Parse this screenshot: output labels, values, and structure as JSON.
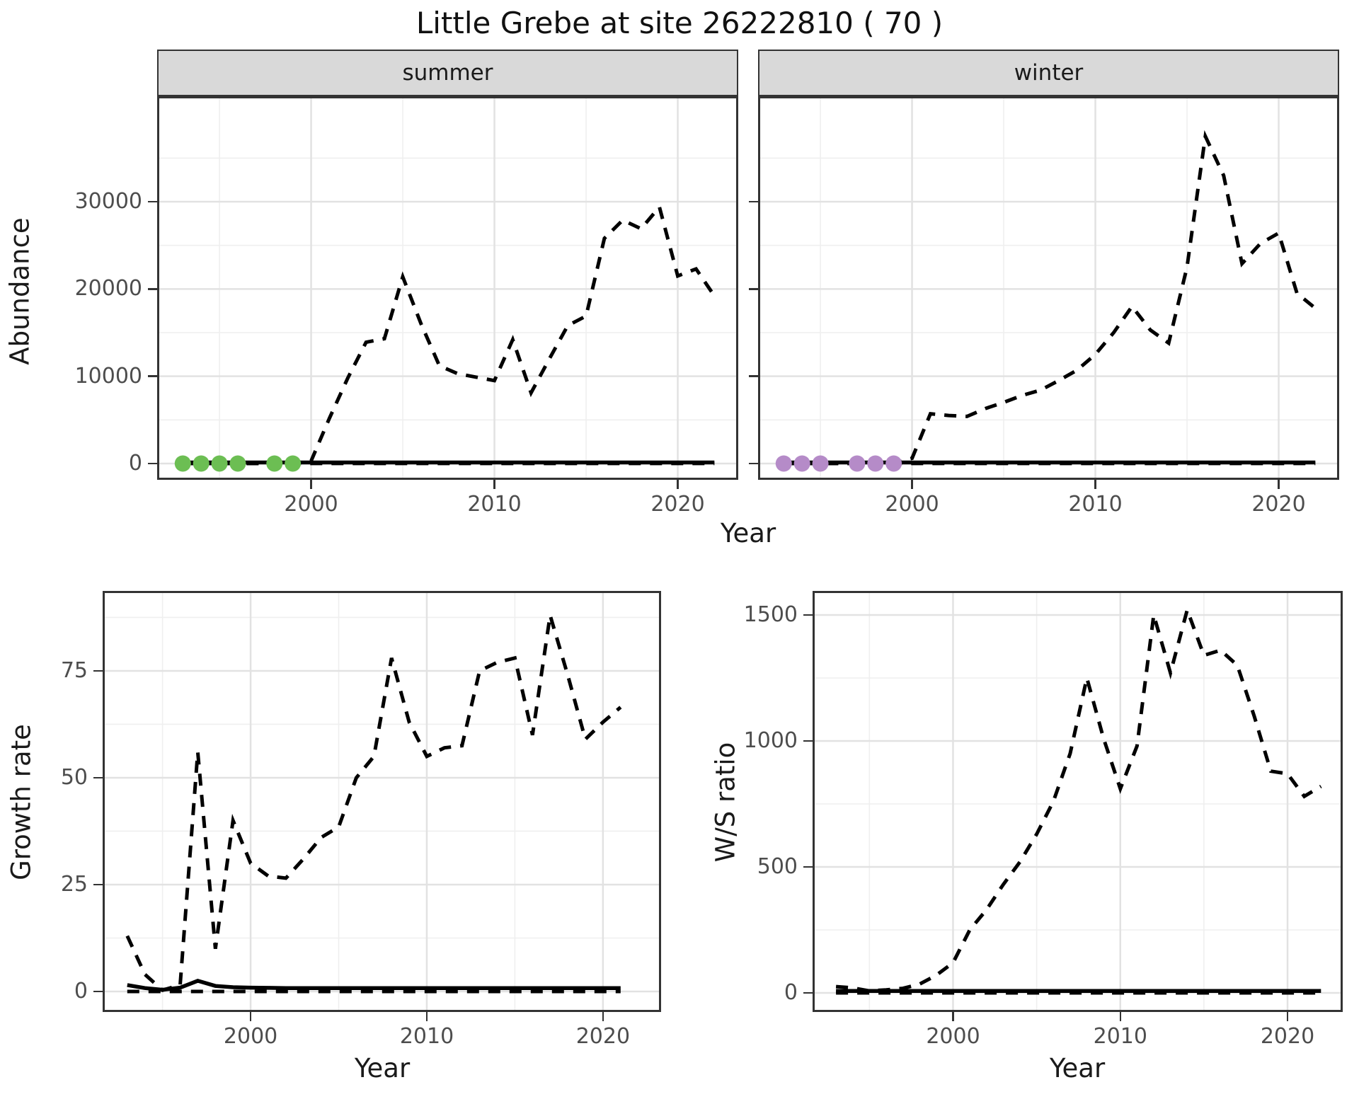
{
  "title": "Little Grebe at site 26222810 ( 70 )",
  "axes": {
    "abundance_label": "Abundance",
    "year_top_label": "Year",
    "growth_label": "Growth rate",
    "year_growth_label": "Year",
    "ws_label": "W/S ratio",
    "year_ws_label": "Year"
  },
  "colors": {
    "summer_dots": "#6cbe53",
    "winter_dots": "#b58bc8",
    "line": "#000000",
    "strip_bg": "#d9d9d9",
    "panel_border": "#333333",
    "grid_major": "#e2e2e2",
    "grid_minor": "#efefef",
    "tick_text": "#4d4d4d"
  },
  "chart_data": [
    {
      "id": "summer",
      "type": "line",
      "facet_label": "summer",
      "ylabel": "Abundance",
      "xlabel": "Year",
      "xlim": [
        1991.6,
        2023.3
      ],
      "ylim": [
        -1870,
        42090
      ],
      "xticks": [
        2000,
        2010,
        2020
      ],
      "xminor": [
        1995,
        2005,
        2015
      ],
      "yticks": [
        0,
        10000,
        20000,
        30000
      ],
      "yminor": [
        5000,
        15000,
        25000,
        35000
      ],
      "show_ytick_labels": true,
      "series": [
        {
          "name": "baseline-dashed",
          "style": "dashed",
          "x": [
            1993,
            2022
          ],
          "y": [
            0,
            0
          ]
        },
        {
          "name": "observed-solid",
          "style": "solid",
          "x": [
            1993,
            2022
          ],
          "y": [
            120,
            120
          ]
        },
        {
          "name": "modelled-dashed",
          "style": "dashed",
          "x": [
            1993,
            1994,
            1995,
            1996,
            1997,
            1998,
            1999,
            2000,
            2001,
            2002,
            2003,
            2004,
            2005,
            2006,
            2007,
            2008,
            2009,
            2010,
            2011,
            2012,
            2013,
            2014,
            2015,
            2016,
            2017,
            2018,
            2019,
            2020,
            2021,
            2022
          ],
          "y": [
            0,
            0,
            0,
            0,
            0,
            0,
            0,
            300,
            5200,
            9800,
            13900,
            14300,
            21400,
            16000,
            11200,
            10300,
            9900,
            9500,
            14200,
            8100,
            12000,
            15800,
            16900,
            25800,
            27900,
            26900,
            29400,
            21500,
            22300,
            19200
          ]
        }
      ],
      "points": {
        "name": "summer-count-dots",
        "color": "#6cbe53",
        "value": 0,
        "years": [
          1993,
          1994,
          1995,
          1996,
          1998,
          1999
        ]
      }
    },
    {
      "id": "winter",
      "type": "line",
      "facet_label": "winter",
      "ylabel": "Abundance",
      "xlabel": "Year",
      "xlim": [
        1991.6,
        2023.3
      ],
      "ylim": [
        -1870,
        42090
      ],
      "xticks": [
        2000,
        2010,
        2020
      ],
      "xminor": [
        1995,
        2005,
        2015
      ],
      "yticks": [
        0,
        10000,
        20000,
        30000
      ],
      "yminor": [
        5000,
        15000,
        25000,
        35000
      ],
      "show_ytick_labels": false,
      "series": [
        {
          "name": "baseline-dashed",
          "style": "dashed",
          "x": [
            1993,
            2022
          ],
          "y": [
            0,
            0
          ]
        },
        {
          "name": "observed-solid",
          "style": "solid",
          "x": [
            1993,
            2022
          ],
          "y": [
            120,
            120
          ]
        },
        {
          "name": "modelled-dashed",
          "style": "dashed",
          "x": [
            1993,
            1994,
            1995,
            1996,
            1997,
            1998,
            1999,
            2000,
            2001,
            2002,
            2003,
            2004,
            2005,
            2006,
            2007,
            2008,
            2009,
            2010,
            2011,
            2012,
            2013,
            2014,
            2015,
            2016,
            2017,
            2018,
            2019,
            2020,
            2021,
            2022
          ],
          "y": [
            0,
            0,
            0,
            0,
            0,
            0,
            0,
            600,
            5700,
            5500,
            5400,
            6300,
            7000,
            7800,
            8400,
            9500,
            10700,
            12500,
            15000,
            18000,
            15300,
            13800,
            22500,
            37500,
            33000,
            22900,
            25200,
            26400,
            19500,
            17800
          ]
        }
      ],
      "points": {
        "name": "winter-count-dots",
        "color": "#b58bc8",
        "value": 0,
        "years": [
          1993,
          1994,
          1995,
          1997,
          1998,
          1999
        ]
      }
    },
    {
      "id": "growth",
      "type": "line",
      "facet_label": null,
      "ylabel": "Growth rate",
      "xlabel": "Year",
      "xlim": [
        1991.6,
        2023.3
      ],
      "ylim": [
        -4.8,
        93.7
      ],
      "xticks": [
        2000,
        2010,
        2020
      ],
      "xminor": [
        1995,
        2005,
        2015
      ],
      "yticks": [
        0,
        25,
        50,
        75
      ],
      "yminor": [
        12.5,
        37.5,
        62.5,
        87.5
      ],
      "show_ytick_labels": true,
      "series": [
        {
          "name": "baseline-dashed",
          "style": "dashed",
          "x": [
            1993,
            2021
          ],
          "y": [
            0,
            0
          ]
        },
        {
          "name": "observed-solid",
          "style": "solid",
          "x": [
            1993,
            1994,
            1995,
            1996,
            1997,
            1998,
            1999,
            2000,
            2001,
            2002,
            2003,
            2004,
            2005,
            2006,
            2007,
            2008,
            2009,
            2010,
            2011,
            2012,
            2013,
            2014,
            2015,
            2016,
            2017,
            2018,
            2019,
            2020,
            2021
          ],
          "y": [
            1.5,
            0.8,
            0.4,
            0.9,
            2.5,
            1.3,
            1.0,
            0.9,
            0.85,
            0.8,
            0.8,
            0.8,
            0.8,
            0.8,
            0.8,
            0.8,
            0.8,
            0.8,
            0.8,
            0.8,
            0.8,
            0.8,
            0.8,
            0.8,
            0.8,
            0.8,
            0.8,
            0.8,
            0.8
          ]
        },
        {
          "name": "modelled-dashed",
          "style": "dashed",
          "x": [
            1993,
            1994,
            1995,
            1996,
            1997,
            1998,
            1999,
            2000,
            2001,
            2002,
            2003,
            2004,
            2005,
            2006,
            2007,
            2008,
            2009,
            2010,
            2011,
            2012,
            2013,
            2014,
            2015,
            2016,
            2017,
            2018,
            2019,
            2020,
            2021
          ],
          "y": [
            13,
            4,
            0.3,
            1.5,
            56,
            10,
            40,
            30,
            27,
            26.5,
            31,
            36,
            38.5,
            50,
            55,
            78,
            63,
            55,
            57,
            57.5,
            75,
            77,
            78,
            60,
            88,
            74,
            59,
            63,
            66.5
          ]
        }
      ],
      "points": null
    },
    {
      "id": "ws",
      "type": "line",
      "facet_label": null,
      "ylabel": "W/S ratio",
      "xlabel": "Year",
      "xlim": [
        1991.6,
        2023.3
      ],
      "ylim": [
        -75.8,
        1595.5
      ],
      "xticks": [
        2000,
        2010,
        2020
      ],
      "xminor": [
        1995,
        2005,
        2015
      ],
      "yticks": [
        0,
        500,
        1000,
        1500
      ],
      "yminor": [
        250,
        750,
        1250
      ],
      "show_ytick_labels": true,
      "series": [
        {
          "name": "baseline-dashed",
          "style": "dashed",
          "x": [
            1993,
            2022
          ],
          "y": [
            0,
            0
          ]
        },
        {
          "name": "observed-solid",
          "style": "solid",
          "x": [
            1993,
            2022
          ],
          "y": [
            8,
            8
          ]
        },
        {
          "name": "modelled-dashed",
          "style": "dashed",
          "x": [
            1993,
            1994,
            1995,
            1996,
            1997,
            1998,
            1999,
            2000,
            2001,
            2002,
            2003,
            2004,
            2005,
            2006,
            2007,
            2008,
            2009,
            2010,
            2011,
            2012,
            2013,
            2014,
            2015,
            2016,
            2017,
            2018,
            2019,
            2020,
            2021,
            2022
          ],
          "y": [
            25,
            20,
            8,
            12,
            18,
            35,
            70,
            120,
            250,
            330,
            430,
            520,
            630,
            760,
            950,
            1250,
            1010,
            810,
            980,
            1500,
            1270,
            1520,
            1340,
            1360,
            1300,
            1100,
            880,
            870,
            780,
            820
          ]
        }
      ],
      "points": null
    }
  ]
}
